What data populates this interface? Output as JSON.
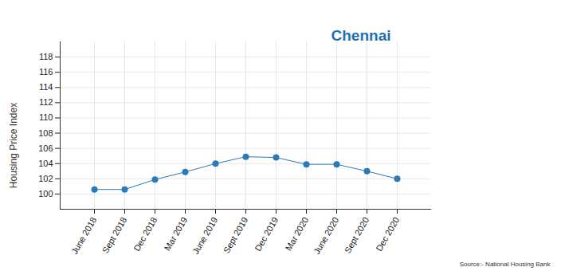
{
  "chart_data": {
    "type": "line",
    "title": "Chennai",
    "y_label": "Housing Price Index",
    "source": "Source:- National Housing Bank",
    "categories": [
      "June 2018",
      "Sept 2018",
      "Dec 2018",
      "Mar 2019",
      "June 2019",
      "Sept 2019",
      "Dec 2019",
      "Mar 2020",
      "June 2020",
      "Sept 2020",
      "Dec 2020"
    ],
    "values": [
      100.6,
      100.6,
      101.9,
      102.9,
      104,
      104.9,
      104.8,
      103.9,
      103.9,
      103,
      102
    ],
    "color": "#2a7ab8",
    "marker": "circle",
    "ylim": [
      98,
      120
    ],
    "yticks": [
      100,
      102,
      104,
      106,
      108,
      110,
      112,
      114,
      116,
      118
    ],
    "grid": true
  }
}
